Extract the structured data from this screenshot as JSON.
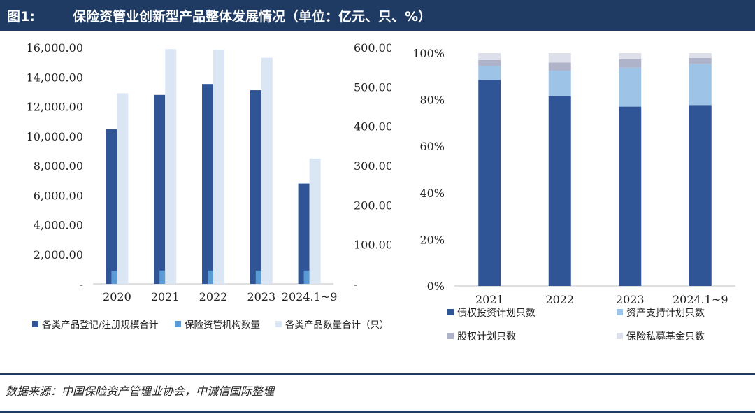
{
  "header": {
    "figure_label": "图1:",
    "title": "保险资管业创新型产品整体发展情况（单位：亿元、只、%）"
  },
  "colors": {
    "title_bg": "#1f3b63",
    "dark_blue": "#2f5597",
    "mid_blue": "#5b9bd5",
    "light_blue": "#dae6f4",
    "sky_blue": "#9dc3e6",
    "gray_lavender": "#aeb3c9",
    "pale_lavender": "#dde0ea"
  },
  "source": "数据来源：中国保险资产管理业协会，中诚信国际整理",
  "chart_data": [
    {
      "type": "bar",
      "categories": [
        "2020",
        "2021",
        "2022",
        "2023",
        "2024.1~9"
      ],
      "series": [
        {
          "name": "各类产品登记/注册规模合计",
          "axis": "left",
          "values": [
            10470,
            12790,
            13530,
            13110,
            6790
          ]
        },
        {
          "name": "保险资管机构数量",
          "axis": "right",
          "values": [
            33,
            34,
            34,
            34,
            34
          ]
        },
        {
          "name": "各类产品数量合计（只）",
          "axis": "right",
          "values": [
            484,
            596,
            594,
            574,
            318
          ]
        }
      ],
      "y_left": {
        "min": 0,
        "max": 16000,
        "step": 2000,
        "ticks": [
          "-",
          "2,000.00",
          "4,000.00",
          "6,000.00",
          "8,000.00",
          "10,000.00",
          "12,000.00",
          "14,000.00",
          "16,000.00"
        ]
      },
      "y_right": {
        "min": 0,
        "max": 600,
        "step": 100,
        "ticks": [
          "-",
          "100.00",
          "200.00",
          "300.00",
          "400.00",
          "500.00",
          "600.00"
        ]
      },
      "legend": [
        "各类产品登记/注册规模合计",
        "保险资管机构数量",
        "各类产品数量合计（只）"
      ],
      "legend_position": "bottom"
    },
    {
      "type": "bar",
      "stacked": true,
      "percent": true,
      "categories": [
        "2021",
        "2022",
        "2023",
        "2024.1~9"
      ],
      "series": [
        {
          "name": "债权投资计划只数",
          "values": [
            88.5,
            81.5,
            77.0,
            77.7
          ]
        },
        {
          "name": "资产支持计划只数",
          "values": [
            6.0,
            11.0,
            16.8,
            17.7
          ]
        },
        {
          "name": "股权计划只数",
          "values": [
            2.5,
            3.5,
            3.5,
            2.5
          ]
        },
        {
          "name": "保险私募基金只数",
          "values": [
            3.0,
            4.0,
            2.7,
            2.1
          ]
        }
      ],
      "y": {
        "min": 0,
        "max": 100,
        "step": 20,
        "ticks": [
          "0%",
          "20%",
          "40%",
          "60%",
          "80%",
          "100%"
        ]
      },
      "legend": [
        "债权投资计划只数",
        "资产支持计划只数",
        "股权计划只数",
        "保险私募基金只数"
      ],
      "legend_position": "bottom"
    }
  ]
}
